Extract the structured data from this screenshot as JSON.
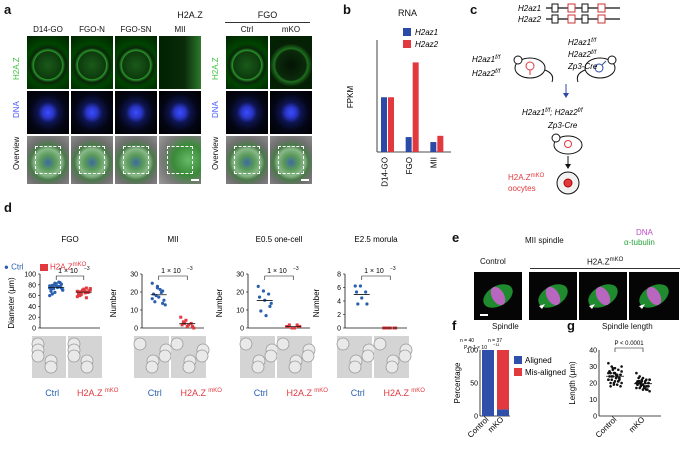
{
  "panel_letters": {
    "a": "a",
    "b": "b",
    "c": "c",
    "d": "d",
    "e": "e",
    "f": "f",
    "g": "g"
  },
  "panel_a": {
    "group1_header": "H2A.Z",
    "group2_header": "FGO",
    "columns1": [
      "D14-GO",
      "FGO-N",
      "FGO-SN",
      "MII"
    ],
    "columns2": [
      "Ctrl",
      "mKO"
    ],
    "row_labels": [
      "H2A.Z",
      "DNA",
      "Overview"
    ],
    "colors": {
      "h2az": "#3cc23c",
      "dna": "#4a5bff"
    }
  },
  "panel_b": {
    "title": "RNA",
    "ylabel": "FPKM",
    "legend": [
      "H2az1",
      "H2az2"
    ],
    "colors": {
      "h2az1": "#2b4aa8",
      "h2az2": "#e2393f"
    }
  },
  "panel_c": {
    "gene1": "H2az1",
    "gene2": "H2az2",
    "female_genotype_1": "H2az1",
    "female_genotype_2": "H2az2",
    "flox_sup": "f/f",
    "male_genotype_1": "H2az1",
    "male_genotype_2": "H2az2",
    "male_cre": "Zp3-Cre",
    "offspring_1": "H2az1",
    "offspring_sep": "; ",
    "offspring_2": "H2az2",
    "offspring_cre": "Zp3-Cre",
    "oocyte_label_1": "H2A.Z",
    "oocyte_sup": "mKO",
    "oocyte_label_2": "oocytes"
  },
  "panel_d": {
    "legend_ctrl": "Ctrl",
    "legend_mko": "H2A.Z",
    "legend_mko_sup": "mKO",
    "plots": [
      {
        "title": "FGO",
        "ylabel": "Diameter (μm)",
        "p": "1 × 10",
        "p_sup": "−3",
        "yticks": [
          "100",
          "80",
          "60",
          "40",
          "20",
          "0"
        ]
      },
      {
        "title": "MII",
        "ylabel": "Number",
        "p": "1 × 10",
        "p_sup": "−3",
        "yticks": [
          "30",
          "20",
          "10",
          "0"
        ]
      },
      {
        "title": "E0.5 one-cell",
        "ylabel": "Number",
        "p": "1 × 10",
        "p_sup": "−3",
        "yticks": [
          "30",
          "20",
          "10",
          "0"
        ]
      },
      {
        "title": "E2.5 morula",
        "ylabel": "Number",
        "p": "1 × 10",
        "p_sup": "−3",
        "yticks": [
          "8",
          "6",
          "4",
          "2",
          "0"
        ]
      }
    ],
    "xlabel_ctrl": "Ctrl",
    "xlabel_mko": "H2A.Z",
    "xlabel_mko_sup": "mKO",
    "colors": {
      "ctrl": "#2a5fb0",
      "mko": "#e2393f"
    }
  },
  "panel_e": {
    "title": "MII spindle",
    "stain_dna": "DNA",
    "stain_tubulin": "α-tubulin",
    "label_control": "Control",
    "label_mko": "H2A.Z",
    "label_mko_sup": "mKO"
  },
  "panel_f": {
    "title": "Spindle",
    "n_ctrl": "n = 40",
    "n_mko": "n = 37",
    "pval": "P = 1 × 10",
    "pval_sup": "−11",
    "ylabel": "Percentage",
    "yticks": [
      "100",
      "50",
      "0"
    ],
    "legend": [
      "Aligned",
      "Mis-aligned"
    ],
    "xlabels": [
      "Control",
      "mKO"
    ]
  },
  "panel_g": {
    "title": "Spindle length",
    "pval": "P < 0.0001",
    "ylabel": "Length (μm)",
    "yticks": [
      "40",
      "30",
      "20",
      "10",
      "0"
    ],
    "xlabels": [
      "Control",
      "mKO"
    ]
  },
  "chart_data": [
    {
      "type": "bar",
      "panel": "b",
      "title": "RNA",
      "ylabel": "FPKM",
      "categories": [
        "D14-GO",
        "FGO",
        "MII"
      ],
      "series": [
        {
          "name": "H2az1",
          "values": [
            22,
            6,
            4
          ]
        },
        {
          "name": "H2az2",
          "values": [
            22,
            36,
            6.5
          ]
        }
      ],
      "ylim": [
        0,
        45
      ]
    },
    {
      "type": "scatter",
      "panel": "d-FGO",
      "title": "FGO",
      "ylabel": "Diameter (μm)",
      "categories": [
        "Ctrl",
        "H2A.ZmKO"
      ],
      "ylim": [
        0,
        100
      ],
      "series": [
        {
          "name": "Ctrl",
          "values": [
            78,
            80,
            77,
            75,
            82,
            74,
            79,
            76,
            71,
            73,
            85,
            60,
            66,
            84,
            72,
            78,
            81,
            63,
            75,
            70,
            79,
            77,
            74,
            83,
            76,
            68
          ]
        },
        {
          "name": "H2A.ZmKO",
          "values": [
            68,
            70,
            66,
            64,
            72,
            69,
            67,
            65,
            71,
            62,
            74,
            58,
            69,
            66,
            63,
            70,
            67,
            60,
            68,
            73,
            65,
            56
          ]
        }
      ]
    },
    {
      "type": "scatter",
      "panel": "d-MII",
      "title": "MII",
      "ylabel": "Number",
      "categories": [
        "Ctrl",
        "H2A.ZmKO"
      ],
      "ylim": [
        0,
        35
      ],
      "series": [
        {
          "name": "Ctrl",
          "values": [
            29,
            26,
            24,
            22,
            20,
            18,
            17,
            25,
            15,
            21,
            23,
            19,
            27,
            16
          ]
        },
        {
          "name": "H2A.ZmKO",
          "values": [
            7,
            5,
            3,
            2,
            1,
            1,
            4,
            2,
            0,
            3
          ]
        }
      ]
    },
    {
      "type": "scatter",
      "panel": "d-E0.5",
      "title": "E0.5 one-cell",
      "ylabel": "Number",
      "categories": [
        "Ctrl",
        "H2A.ZmKO"
      ],
      "ylim": [
        0,
        35
      ],
      "series": [
        {
          "name": "Ctrl",
          "values": [
            27,
            24,
            22,
            20,
            18,
            14,
            11,
            8,
            16
          ]
        },
        {
          "name": "H2A.ZmKO",
          "values": [
            1,
            0,
            2,
            1,
            0,
            1,
            2,
            0,
            1
          ]
        }
      ]
    },
    {
      "type": "scatter",
      "panel": "d-E2.5",
      "title": "E2.5 morula",
      "ylabel": "Number",
      "categories": [
        "Ctrl",
        "H2A.ZmKO"
      ],
      "ylim": [
        0,
        9
      ],
      "series": [
        {
          "name": "Ctrl",
          "values": [
            7,
            7,
            6,
            6,
            5,
            4,
            4
          ]
        },
        {
          "name": "H2A.ZmKO",
          "values": [
            0,
            0,
            0,
            0,
            0,
            0,
            0
          ]
        }
      ]
    },
    {
      "type": "bar",
      "panel": "f",
      "title": "Spindle",
      "ylabel": "Percentage",
      "categories": [
        "Control",
        "mKO"
      ],
      "series": [
        {
          "name": "Aligned",
          "values": [
            100,
            10
          ]
        },
        {
          "name": "Mis-aligned",
          "values": [
            0,
            90
          ]
        }
      ],
      "ylim": [
        0,
        100
      ]
    },
    {
      "type": "scatter",
      "panel": "g",
      "title": "Spindle length",
      "ylabel": "Length (μm)",
      "categories": [
        "Control",
        "mKO"
      ],
      "ylim": [
        0,
        40
      ],
      "series": [
        {
          "name": "Control",
          "values": [
            32,
            30,
            29,
            28,
            27,
            26,
            26,
            25,
            25,
            24,
            24,
            23,
            23,
            22,
            22,
            21,
            21,
            20,
            20,
            19,
            19,
            18,
            27,
            28,
            25,
            23,
            22,
            24,
            26,
            21,
            30,
            18,
            20,
            24,
            25,
            27,
            29,
            23,
            22,
            26
          ]
        },
        {
          "name": "mKO",
          "values": [
            26,
            24,
            23,
            22,
            22,
            21,
            21,
            20,
            20,
            19,
            19,
            18,
            18,
            17,
            17,
            16,
            16,
            15,
            23,
            22,
            21,
            20,
            19,
            18,
            17,
            16,
            20,
            21,
            19,
            18,
            22,
            20,
            19,
            17,
            18,
            21,
            20
          ]
        }
      ]
    }
  ]
}
